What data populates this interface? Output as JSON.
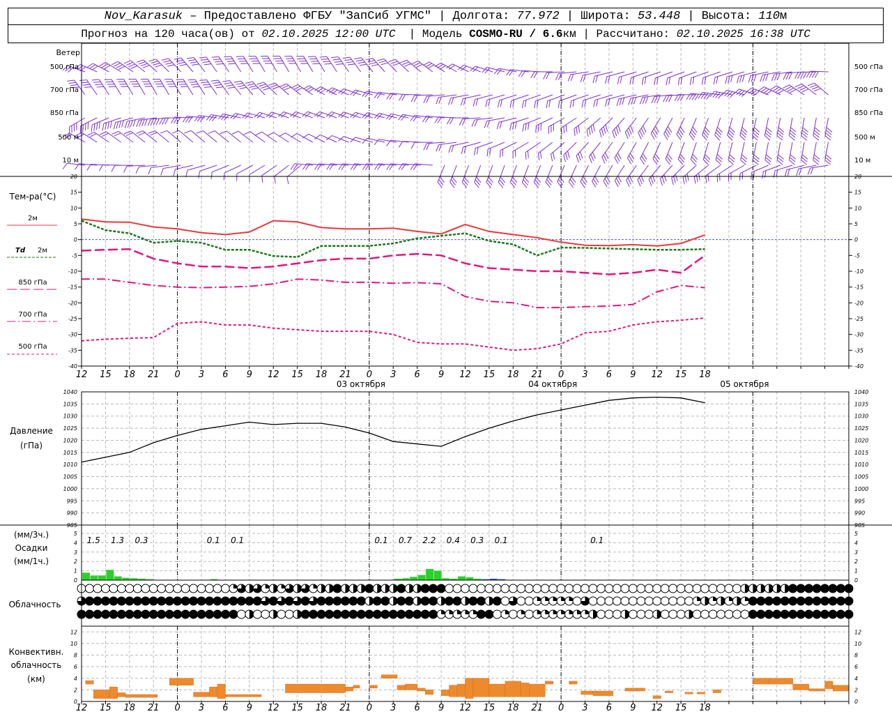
{
  "header": {
    "station": "Nov_Karasuk",
    "dash": " – ",
    "provider": "Предоставлено ФГБУ \"ЗапСиб УГМС\"",
    "lon_label": "Долгота:",
    "lon": "77.972",
    "lat_label": "Широта:",
    "lat": "53.448",
    "alt_label": "Высота:",
    "alt": "110",
    "alt_unit": "м",
    "forecast_label": "Прогноз на 120 часа(ов) от",
    "forecast_from": "02.10.2025 12:00 UTC",
    "model_label": "Модель",
    "model": "COSMO-RU / 6.6",
    "model_unit": "км",
    "calc_label": "Рассчитано:",
    "calc_time": "02.10.2025 16:38 UTC"
  },
  "time_axis": {
    "hour_labels": [
      "12",
      "15",
      "18",
      "21",
      "0",
      "3",
      "6",
      "9",
      "12",
      "15",
      "18",
      "21",
      "0",
      "3",
      "6",
      "9",
      "12",
      "15",
      "18",
      "21",
      "0",
      "3",
      "6",
      "9",
      "12",
      "15",
      "18"
    ],
    "dates": [
      "03 октября",
      "04 октября",
      "05 октября"
    ]
  },
  "wind_panel": {
    "title": "Ветер",
    "levels": [
      "500 гПа",
      "700 гПа",
      "850 гПа",
      "500 м",
      "10  м"
    ],
    "barb_color": "#7b2fd0"
  },
  "temp_panel": {
    "title": "Тем-ра(°С)",
    "ylim": [
      -40,
      20
    ],
    "ticks": [
      "20",
      "15",
      "10",
      "5",
      "0",
      "-5",
      "-10",
      "-15",
      "-20",
      "-25",
      "-30",
      "-35",
      "-40"
    ],
    "legend": [
      {
        "label": "2м",
        "color": "#e8393a"
      },
      {
        "prefix": "Td",
        "label": "2м",
        "color": "#1a7a1a"
      },
      {
        "label": "850 гПа",
        "color": "#e0157f"
      },
      {
        "label": "700 гПа",
        "color": "#e0157f"
      },
      {
        "label": "500 гПа",
        "color": "#e0157f"
      }
    ]
  },
  "pressure_panel": {
    "title": "Давление",
    "unit": "(гПа)",
    "ylim": [
      985,
      1040
    ],
    "ticks": [
      "1040",
      "1035",
      "1030",
      "1025",
      "1020",
      "1015",
      "1010",
      "1005",
      "1000",
      "995",
      "990",
      "985"
    ]
  },
  "precip_panel": {
    "title": "Осадки",
    "unit_3h": "(мм/3ч.)",
    "unit_1h": "(мм/1ч.)",
    "ticks": [
      "5",
      "4",
      "3",
      "2",
      "1",
      "0"
    ],
    "sums": [
      {
        "h": 1.5,
        "v": "1.5"
      },
      {
        "h": 4.5,
        "v": "1.3"
      },
      {
        "h": 7.5,
        "v": "0.3"
      },
      {
        "h": 16.5,
        "v": "0.1"
      },
      {
        "h": 19.5,
        "v": "0.1"
      },
      {
        "h": 37.5,
        "v": "0.1"
      },
      {
        "h": 40.5,
        "v": "0.7"
      },
      {
        "h": 43.5,
        "v": "2.2"
      },
      {
        "h": 46.5,
        "v": "0.4"
      },
      {
        "h": 49.5,
        "v": "0.3"
      },
      {
        "h": 52.5,
        "v": "0.1"
      },
      {
        "h": 64.5,
        "v": "0.1"
      }
    ]
  },
  "cloud_panel": {
    "title": "Облачность"
  },
  "conv_panel": {
    "title1": "Конвективн.",
    "title2": "облачность",
    "unit": "(км)",
    "ticks": [
      "12",
      "10",
      "8",
      "6",
      "4",
      "2",
      "0"
    ]
  },
  "chart_data": [
    {
      "type": "line",
      "name": "temperature",
      "x_hours": [
        0,
        3,
        6,
        9,
        12,
        15,
        18,
        21,
        24,
        27,
        30,
        33,
        36,
        39,
        42,
        45,
        48,
        51,
        54,
        57,
        60,
        63,
        66,
        69,
        72,
        75,
        78
      ],
      "series": [
        {
          "name": "2м",
          "color": "#e8393a",
          "values": [
            6.5,
            5.6,
            5.5,
            4.0,
            3.4,
            2.2,
            1.6,
            2.4,
            6.0,
            5.6,
            3.8,
            3.4,
            3.4,
            3.6,
            2.6,
            1.8,
            4.8,
            2.6,
            1.6,
            0.6,
            -0.8,
            -1.8,
            -1.9,
            -1.6,
            -2.0,
            -1.2,
            1.5
          ]
        },
        {
          "name": "Td 2м",
          "color": "#1a7a1a",
          "values": [
            6.0,
            3.0,
            2.0,
            -1.0,
            -0.4,
            -1.0,
            -3.2,
            -3.2,
            -5.2,
            -5.5,
            -2.0,
            -2.0,
            -2.0,
            -1.2,
            0.4,
            1.2,
            2.0,
            -0.4,
            -1.5,
            -5.0,
            -2.5,
            -2.6,
            -2.8,
            -3.0,
            -3.2,
            -3.2,
            -3.0
          ]
        },
        {
          "name": "850 гПа",
          "color": "#e0157f",
          "values": [
            -3.5,
            -3.2,
            -3.0,
            -6.0,
            -7.5,
            -8.5,
            -8.5,
            -9.0,
            -8.5,
            -7.5,
            -6.5,
            -6.0,
            -6.0,
            -5.0,
            -4.5,
            -5.0,
            -7.5,
            -9.0,
            -9.5,
            -10.0,
            -10.0,
            -10.5,
            -11.0,
            -10.5,
            -9.5,
            -10.5,
            -5.0
          ]
        },
        {
          "name": "700 гПа",
          "color": "#e0157f",
          "values": [
            -12.5,
            -12.5,
            -13.5,
            -14.5,
            -15.0,
            -15.2,
            -15.0,
            -14.8,
            -14.0,
            -12.5,
            -12.8,
            -13.5,
            -13.5,
            -13.8,
            -13.6,
            -14.0,
            -18.0,
            -19.5,
            -20.0,
            -21.5,
            -21.5,
            -21.2,
            -21.0,
            -20.5,
            -16.5,
            -14.5,
            -15.2
          ]
        },
        {
          "name": "500 гПа",
          "color": "#e0157f",
          "values": [
            -32.0,
            -31.5,
            -31.2,
            -31.0,
            -26.5,
            -26.0,
            -27.0,
            -27.0,
            -28.0,
            -28.5,
            -29.0,
            -29.0,
            -29.0,
            -30.0,
            -32.5,
            -33.0,
            -33.0,
            -34.0,
            -35.0,
            -34.5,
            -33.0,
            -29.5,
            -29.0,
            -27.0,
            -26.0,
            -25.5,
            -24.8
          ]
        }
      ]
    },
    {
      "type": "line",
      "name": "pressure",
      "x_hours": [
        0,
        3,
        6,
        9,
        12,
        15,
        18,
        21,
        24,
        27,
        30,
        33,
        36,
        39,
        42,
        45,
        48,
        51,
        54,
        57,
        60,
        63,
        66,
        69,
        72,
        75,
        78
      ],
      "values": [
        1011,
        1013,
        1015,
        1019,
        1022,
        1024.5,
        1026,
        1027.5,
        1026.5,
        1027,
        1027,
        1025.5,
        1023,
        1019.5,
        1018.5,
        1017.5,
        1021.5,
        1025,
        1028,
        1030.5,
        1032.5,
        1034.5,
        1036.5,
        1037.5,
        1037.8,
        1037.5,
        1035.5
      ]
    },
    {
      "type": "bar",
      "name": "precipitation_1h",
      "ylim": [
        0,
        5
      ],
      "bars": [
        {
          "h": 0,
          "v": 0.8,
          "color": "#2bd12b"
        },
        {
          "h": 1,
          "v": 0.5,
          "color": "#2bd12b"
        },
        {
          "h": 2,
          "v": 0.5,
          "color": "#2bd12b"
        },
        {
          "h": 3,
          "v": 1.1,
          "color": "#2bd12b"
        },
        {
          "h": 4,
          "v": 0.4,
          "color": "#2bd12b"
        },
        {
          "h": 5,
          "v": 0.25,
          "color": "#2bd12b"
        },
        {
          "h": 6,
          "v": 0.2,
          "color": "#2bd12b"
        },
        {
          "h": 7,
          "v": 0.15,
          "color": "#2bd12b"
        },
        {
          "h": 8,
          "v": 0.1,
          "color": "#2bd12b"
        },
        {
          "h": 16,
          "v": 0.1,
          "color": "#2bd12b"
        },
        {
          "h": 39,
          "v": 0.15,
          "color": "#2bd12b"
        },
        {
          "h": 40,
          "v": 0.2,
          "color": "#2bd12b"
        },
        {
          "h": 41,
          "v": 0.35,
          "color": "#2bd12b"
        },
        {
          "h": 42,
          "v": 0.55,
          "color": "#2bd12b"
        },
        {
          "h": 43,
          "v": 1.2,
          "color": "#2bd12b"
        },
        {
          "h": 44,
          "v": 1.0,
          "color": "#2bd12b"
        },
        {
          "h": 45,
          "v": 0.2,
          "color": "#2bd12b"
        },
        {
          "h": 46,
          "v": 0.15,
          "color": "#2bd12b"
        },
        {
          "h": 47,
          "v": 0.4,
          "color": "#2bd12b"
        },
        {
          "h": 48,
          "v": 0.3,
          "color": "#2bd12b"
        },
        {
          "h": 49,
          "v": 0.15,
          "color": "#2bd12b"
        },
        {
          "h": 50,
          "v": 0.1,
          "color": "#3050d0"
        },
        {
          "h": 51,
          "v": 0.15,
          "color": "#3050d0"
        },
        {
          "h": 52,
          "v": 0.1,
          "color": "#3050d0"
        }
      ]
    },
    {
      "type": "bar",
      "name": "convective_cloud_km",
      "ylim": [
        0,
        13
      ],
      "segments": [
        {
          "h0": 0.5,
          "h1": 1.5,
          "lo": 3,
          "hi": 3.6
        },
        {
          "h0": 1.5,
          "h1": 3.5,
          "lo": 0.5,
          "hi": 2.0
        },
        {
          "h0": 3.5,
          "h1": 4.5,
          "lo": 0.5,
          "hi": 2.5
        },
        {
          "h0": 4.5,
          "h1": 5.5,
          "lo": 0.8,
          "hi": 1.5
        },
        {
          "h0": 5.5,
          "h1": 7.5,
          "lo": 0.7,
          "hi": 1.2
        },
        {
          "h0": 7.5,
          "h1": 9.5,
          "lo": 0.7,
          "hi": 1.2
        },
        {
          "h0": 11,
          "h1": 14,
          "lo": 2.8,
          "hi": 4.0
        },
        {
          "h0": 14,
          "h1": 16,
          "lo": 0.8,
          "hi": 1.6
        },
        {
          "h0": 16,
          "h1": 17,
          "lo": 0.8,
          "hi": 2.5
        },
        {
          "h0": 17,
          "h1": 18,
          "lo": 0.5,
          "hi": 3.0
        },
        {
          "h0": 18,
          "h1": 22.5,
          "lo": 0.8,
          "hi": 1.2
        },
        {
          "h0": 25.5,
          "h1": 33,
          "lo": 1.5,
          "hi": 3.0
        },
        {
          "h0": 33,
          "h1": 34,
          "lo": 1.8,
          "hi": 2.5
        },
        {
          "h0": 34,
          "h1": 34.8,
          "lo": 2.3,
          "hi": 2.8
        },
        {
          "h0": 36,
          "h1": 37,
          "lo": 2.3,
          "hi": 2.8
        },
        {
          "h0": 37.5,
          "h1": 39.5,
          "lo": 4.0,
          "hi": 4.6
        },
        {
          "h0": 39.5,
          "h1": 40.5,
          "lo": 2.0,
          "hi": 2.8
        },
        {
          "h0": 40.5,
          "h1": 42,
          "lo": 2.0,
          "hi": 3.0
        },
        {
          "h0": 42,
          "h1": 43,
          "lo": 1.8,
          "hi": 2.3
        },
        {
          "h0": 43,
          "h1": 44,
          "lo": 1.2,
          "hi": 2.0
        },
        {
          "h0": 45,
          "h1": 46,
          "lo": 1.0,
          "hi": 2.0
        },
        {
          "h0": 46,
          "h1": 47,
          "lo": 0.8,
          "hi": 2.8
        },
        {
          "h0": 47,
          "h1": 48,
          "lo": 0.8,
          "hi": 3.0
        },
        {
          "h0": 48,
          "h1": 49,
          "lo": 0.5,
          "hi": 4.0
        },
        {
          "h0": 49,
          "h1": 51,
          "lo": 0.8,
          "hi": 4.0
        },
        {
          "h0": 51,
          "h1": 53,
          "lo": 0.8,
          "hi": 3.0
        },
        {
          "h0": 53,
          "h1": 55,
          "lo": 0.8,
          "hi": 3.5
        },
        {
          "h0": 55,
          "h1": 56,
          "lo": 0.8,
          "hi": 3.2
        },
        {
          "h0": 56,
          "h1": 58,
          "lo": 0.8,
          "hi": 3.0
        },
        {
          "h0": 58,
          "h1": 59,
          "lo": 3.0,
          "hi": 3.5
        },
        {
          "h0": 61,
          "h1": 62,
          "lo": 3.0,
          "hi": 3.5
        },
        {
          "h0": 62.5,
          "h1": 64,
          "lo": 1.2,
          "hi": 1.8
        },
        {
          "h0": 64,
          "h1": 66.5,
          "lo": 1.0,
          "hi": 1.8
        },
        {
          "h0": 68,
          "h1": 69.5,
          "lo": 1.8,
          "hi": 2.3
        },
        {
          "h0": 69.5,
          "h1": 70.5,
          "lo": 1.8,
          "hi": 2.3
        },
        {
          "h0": 71.5,
          "h1": 72.5,
          "lo": 0.5,
          "hi": 1.0
        },
        {
          "h0": 73,
          "h1": 74,
          "lo": 1.5,
          "hi": 1.8
        },
        {
          "h0": 75.5,
          "h1": 76.5,
          "lo": 1.3,
          "hi": 1.6
        },
        {
          "h0": 77,
          "h1": 78,
          "lo": 1.3,
          "hi": 1.6
        },
        {
          "h0": 79,
          "h1": 80,
          "lo": 1.5,
          "hi": 2.0
        },
        {
          "h0": 84,
          "h1": 86,
          "lo": 3.0,
          "hi": 4.0
        },
        {
          "h0": 86,
          "h1": 89,
          "lo": 3.0,
          "hi": 4.0
        },
        {
          "h0": 89,
          "h1": 91,
          "lo": 2.0,
          "hi": 3.0
        },
        {
          "h0": 91,
          "h1": 92,
          "lo": 1.8,
          "hi": 2.2
        },
        {
          "h0": 92,
          "h1": 93,
          "lo": 1.8,
          "hi": 2.2
        },
        {
          "h0": 93,
          "h1": 94,
          "lo": 2.2,
          "hi": 3.5
        },
        {
          "h0": 94,
          "h1": 96,
          "lo": 1.8,
          "hi": 2.8
        }
      ]
    }
  ]
}
